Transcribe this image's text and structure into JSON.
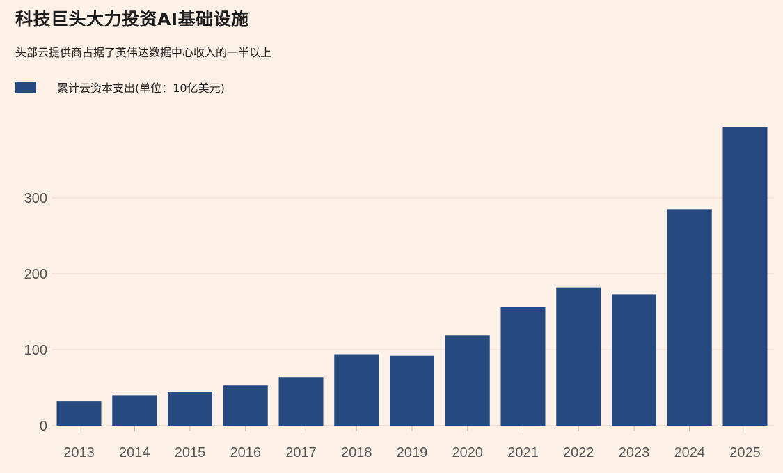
{
  "chart_data": {
    "type": "bar",
    "title": "科技巨头大力投资AI基础设施",
    "subtitle": "头部云提供商占据了英伟达数据中心收入的一半以上",
    "xlabel": "",
    "ylabel": "",
    "series": [
      {
        "name": "累计云资本支出(单位：10亿美元)",
        "color": "#264a80",
        "values": [
          32,
          40,
          44,
          53,
          64,
          94,
          92,
          119,
          156,
          182,
          173,
          285,
          393
        ]
      }
    ],
    "categories": [
      "2013",
      "2014",
      "2015",
      "2016",
      "2017",
      "2018",
      "2019",
      "2020",
      "2021",
      "2022",
      "2023",
      "2024",
      "2025"
    ],
    "ylim": [
      0,
      400
    ],
    "yticks": [
      0,
      100,
      200,
      300
    ],
    "grid": true,
    "legend": "top-left"
  }
}
